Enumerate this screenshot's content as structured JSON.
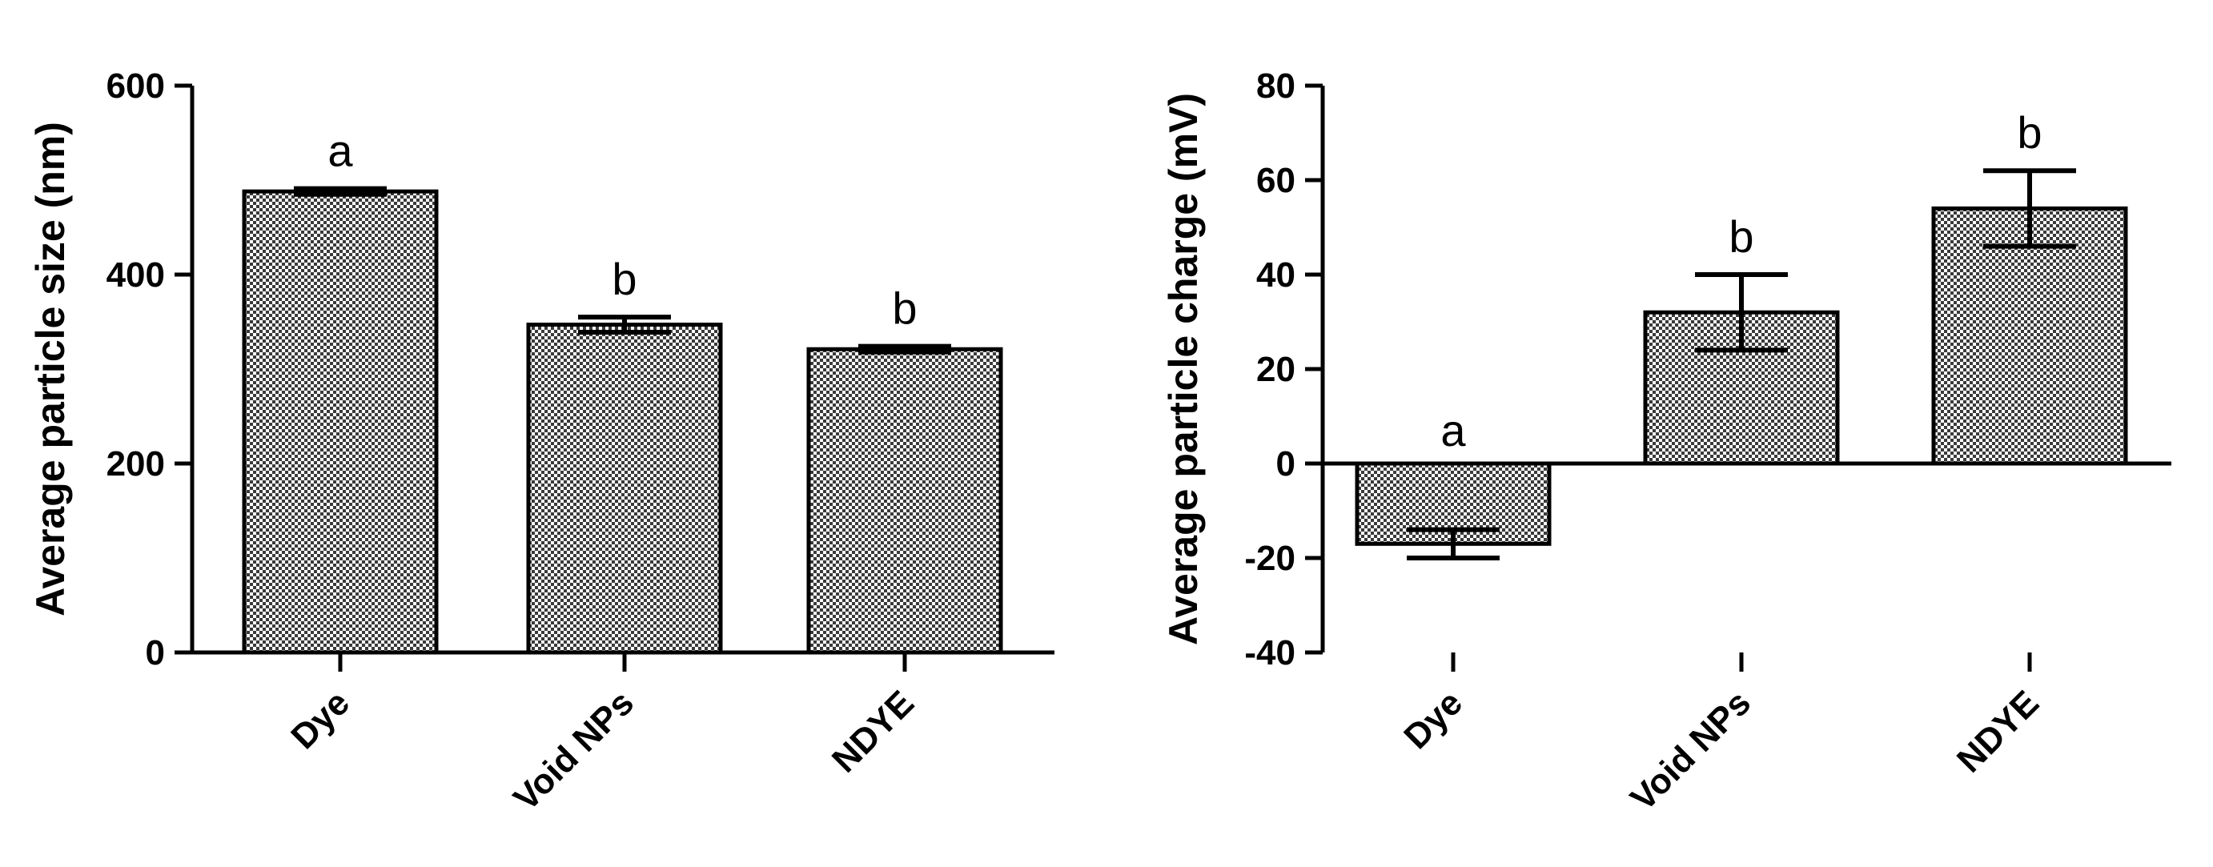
{
  "chart_data": [
    {
      "type": "bar",
      "categories": [
        "Dye",
        "Void NPs",
        "NDYE"
      ],
      "values": [
        488,
        347,
        321
      ],
      "errors": [
        3,
        8,
        3
      ],
      "significance": [
        "a",
        "b",
        "b"
      ],
      "ylabel": "Average particle size (nm)",
      "ylim": [
        0,
        600
      ],
      "yticks": [
        0,
        200,
        400,
        600
      ],
      "grid": false,
      "legend": "none",
      "bar_fill": "#b5b5b5"
    },
    {
      "type": "bar",
      "categories": [
        "Dye",
        "Void NPs",
        "NDYE"
      ],
      "values": [
        -17,
        32,
        54
      ],
      "errors": [
        3,
        8,
        8
      ],
      "significance": [
        "a",
        "b",
        "b"
      ],
      "ylabel": "Average particle charge (mV)",
      "ylim": [
        -40,
        80
      ],
      "yticks": [
        -40,
        -20,
        0,
        20,
        40,
        60,
        80
      ],
      "grid": false,
      "legend": "none",
      "bar_fill": "#b5b5b5"
    }
  ]
}
